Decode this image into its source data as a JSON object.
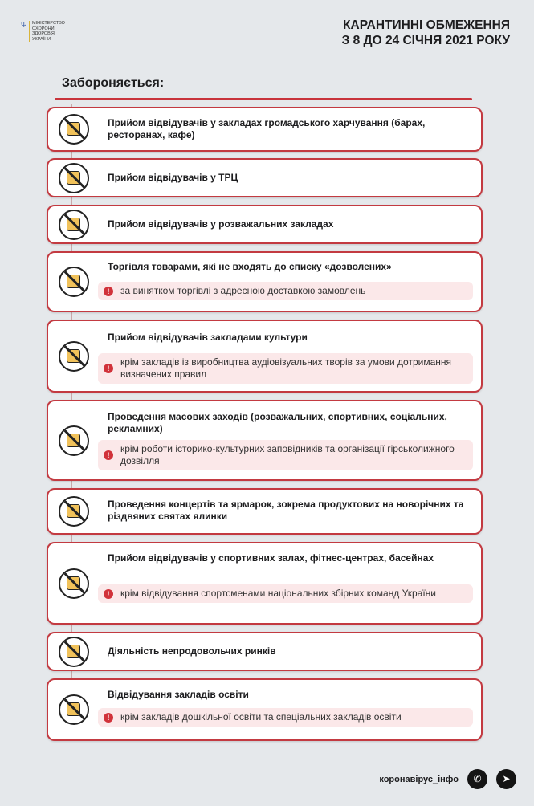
{
  "header": {
    "logo_text": "Міністерство охорони здоров'я України",
    "title_line1": "КАРАНТИННІ ОБМЕЖЕННЯ",
    "title_line2": "З 8 ДО 24 СІЧНЯ 2021 РОКУ"
  },
  "heading": "Забороняється:",
  "items": [
    {
      "text": "Прийом відвідувачів у закладах громадського харчування (барах, ресторанах, кафе)",
      "icon": "no-restaurant-icon"
    },
    {
      "text": "Прийом відвідувачів у ТРЦ",
      "icon": "no-shopping-icon"
    },
    {
      "text": "Прийом відвідувачів у розважальних закладах",
      "icon": "no-gaming-icon"
    },
    {
      "text": "Торгівля товарами, які не входять до списку «дозволених»",
      "note": "за винятком торгівлі з адресною доставкою замовлень",
      "icon": "no-store-icon"
    },
    {
      "text": "Прийом відвідувачів закладами культури",
      "note": "крім закладів із виробництва аудіовізуальних творів за умови дотримання визначених правил",
      "icon": "no-culture-icon"
    },
    {
      "text": "Проведення масових заходів (розважальних, спортивних, соціальних, рекламних)",
      "note": "крім роботи історико-культурних заповідників  та організації гірськолижного дозвілля",
      "icon": "no-crowd-icon"
    },
    {
      "text": "Проведення концертів та ярмарок, зокрема продуктових на новорічних та різдвяних святах ялинки",
      "icon": "no-fair-icon"
    },
    {
      "text": "Прийом відвідувачів у спортивних залах, фітнес-центрах, басейнах",
      "note": "крім відвідування спортсменами національних збірних команд України",
      "icon": "no-gym-icon"
    },
    {
      "text": "Діяльність непродовольчих ринків",
      "icon": "no-market-icon"
    },
    {
      "text": "Відвідування закладів освіти",
      "note": "крім закладів дошкільної освіти та спеціальних закладів освіти",
      "icon": "no-school-icon"
    }
  ],
  "footer": {
    "text": "коронавірус_інфо",
    "icons": [
      "viber-icon",
      "telegram-icon"
    ]
  },
  "colors": {
    "accent": "#c33a41",
    "background": "#e5e8eb",
    "note_bg": "#fbe8e9"
  }
}
